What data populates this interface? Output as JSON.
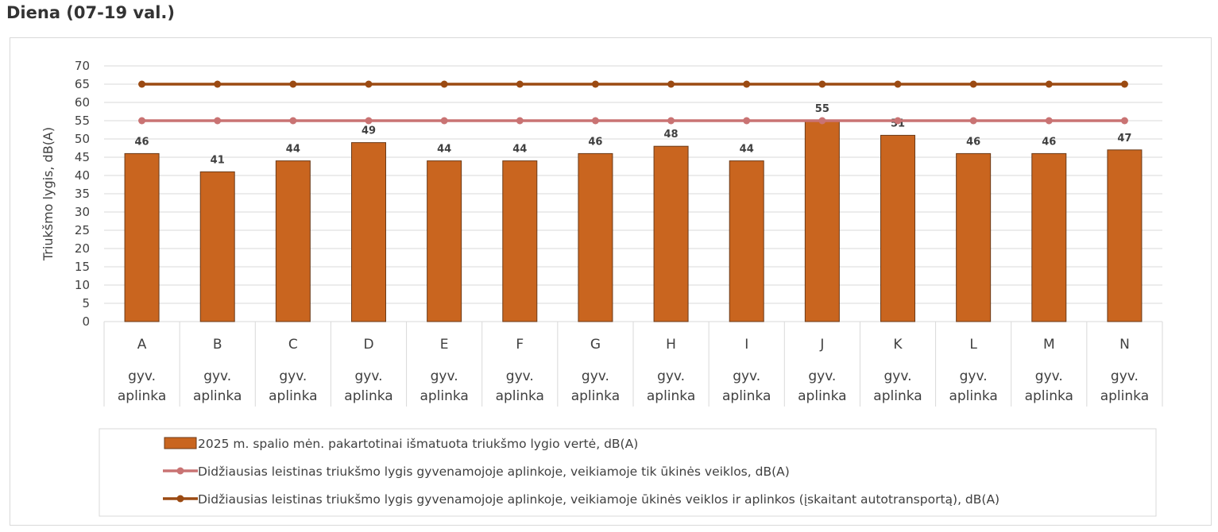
{
  "title": "Diena (07-19 val.)",
  "colors": {
    "bar_fill": "#c9651f",
    "bar_stroke": "#6b3a18",
    "line_low": "#c97373",
    "line_high": "#9b4a12",
    "grid": "#d9d9d9",
    "text": "#404040"
  },
  "chart_data": {
    "type": "bar",
    "title": "Diena (07-19 val.)",
    "ylabel": "Triukšmo lygis, dB(A)",
    "ylim": [
      0,
      70
    ],
    "ytick_step": 5,
    "yticks": [
      "0",
      "5",
      "10",
      "15",
      "20",
      "25",
      "30",
      "35",
      "40",
      "45",
      "50",
      "55",
      "60",
      "65",
      "70"
    ],
    "categories": [
      "A",
      "B",
      "C",
      "D",
      "E",
      "F",
      "G",
      "H",
      "I",
      "J",
      "K",
      "L",
      "M",
      "N"
    ],
    "category_group_label": [
      "gyv.",
      "aplinka"
    ],
    "series": [
      {
        "name": "2025 m. spalio mėn. pakartotinai išmatuota triukšmo lygio vertė, dB(A)",
        "type": "bar",
        "values": [
          46,
          41,
          44,
          49,
          44,
          44,
          46,
          48,
          44,
          55,
          51,
          46,
          46,
          47
        ]
      },
      {
        "name": "Didžiausias leistinas triukšmo lygis gyvenamojoje aplinkoje, veikiamoje tik ūkinės veiklos,  dB(A)",
        "type": "line",
        "values": [
          55,
          55,
          55,
          55,
          55,
          55,
          55,
          55,
          55,
          55,
          55,
          55,
          55,
          55
        ]
      },
      {
        "name": "Didžiausias leistinas triukšmo lygis gyvenamojoje aplinkoje, veikiamoje ūkinės veiklos ir aplinkos (įskaitant autotransportą),  dB(A)",
        "type": "line",
        "values": [
          65,
          65,
          65,
          65,
          65,
          65,
          65,
          65,
          65,
          65,
          65,
          65,
          65,
          65
        ]
      }
    ],
    "legend_position": "bottom",
    "grid": true
  }
}
